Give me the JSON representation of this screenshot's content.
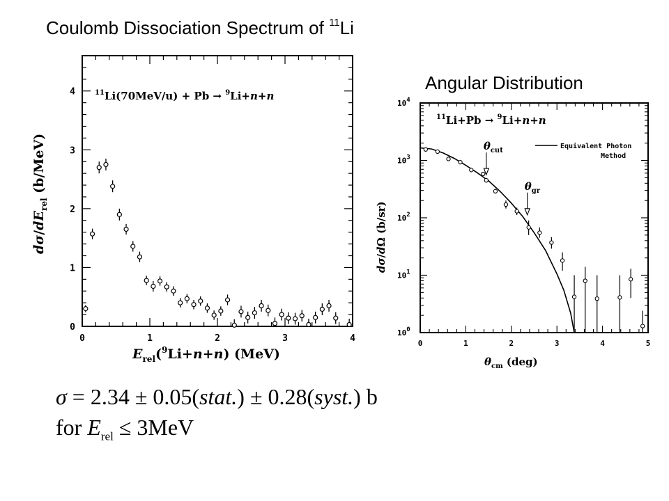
{
  "title": {
    "main": "Coulomb Dissociation Spectrum of ",
    "isotope_mass": "11",
    "isotope_symbol": "Li"
  },
  "subtitle": "Angular Distribution",
  "chart_data": [
    {
      "type": "scatter",
      "annotation": {
        "pre_sup": "11",
        "text1": "Li(70MeV/u) + Pb → ",
        "sup2": "9",
        "text2": "Li+",
        "n1": "n",
        "plus": "+",
        "n2": "n"
      },
      "ylabel": {
        "d1": "d",
        "sigma": "σ",
        "slash": "/",
        "d2": "d",
        "E": "E",
        "sub": "rel",
        "units": " (b/MeV)"
      },
      "xlabel": {
        "E": "E",
        "sub": "rel",
        "open": "(",
        "sup": "9",
        "li": "Li+",
        "n1": "n",
        "plus": "+",
        "n2": "n",
        "close": ") (MeV)"
      },
      "xlim": [
        0,
        4
      ],
      "ylim": [
        0,
        4.6
      ],
      "xticks": [
        "0",
        "1",
        "2",
        "3",
        "4"
      ],
      "yticks": [
        "0",
        "1",
        "2",
        "3",
        "4"
      ],
      "points": [
        {
          "x": 0.05,
          "y": 0.3,
          "err": 0.06
        },
        {
          "x": 0.15,
          "y": 1.57,
          "err": 0.09
        },
        {
          "x": 0.25,
          "y": 2.7,
          "err": 0.1
        },
        {
          "x": 0.35,
          "y": 2.75,
          "err": 0.1
        },
        {
          "x": 0.45,
          "y": 2.38,
          "err": 0.1
        },
        {
          "x": 0.55,
          "y": 1.9,
          "err": 0.1
        },
        {
          "x": 0.65,
          "y": 1.65,
          "err": 0.09
        },
        {
          "x": 0.75,
          "y": 1.36,
          "err": 0.09
        },
        {
          "x": 0.85,
          "y": 1.18,
          "err": 0.09
        },
        {
          "x": 0.95,
          "y": 0.78,
          "err": 0.08
        },
        {
          "x": 1.05,
          "y": 0.68,
          "err": 0.09
        },
        {
          "x": 1.15,
          "y": 0.77,
          "err": 0.08
        },
        {
          "x": 1.25,
          "y": 0.67,
          "err": 0.08
        },
        {
          "x": 1.35,
          "y": 0.6,
          "err": 0.08
        },
        {
          "x": 1.45,
          "y": 0.4,
          "err": 0.08
        },
        {
          "x": 1.55,
          "y": 0.47,
          "err": 0.08
        },
        {
          "x": 1.65,
          "y": 0.37,
          "err": 0.08
        },
        {
          "x": 1.75,
          "y": 0.43,
          "err": 0.08
        },
        {
          "x": 1.85,
          "y": 0.31,
          "err": 0.08
        },
        {
          "x": 1.95,
          "y": 0.19,
          "err": 0.08
        },
        {
          "x": 2.05,
          "y": 0.26,
          "err": 0.08
        },
        {
          "x": 2.15,
          "y": 0.45,
          "err": 0.09
        },
        {
          "x": 2.25,
          "y": 0.02,
          "err": 0.1
        },
        {
          "x": 2.35,
          "y": 0.25,
          "err": 0.1
        },
        {
          "x": 2.45,
          "y": 0.15,
          "err": 0.1
        },
        {
          "x": 2.55,
          "y": 0.23,
          "err": 0.1
        },
        {
          "x": 2.65,
          "y": 0.35,
          "err": 0.1
        },
        {
          "x": 2.75,
          "y": 0.27,
          "err": 0.1
        },
        {
          "x": 2.85,
          "y": 0.05,
          "err": 0.1
        },
        {
          "x": 2.95,
          "y": 0.2,
          "err": 0.1
        },
        {
          "x": 3.05,
          "y": 0.14,
          "err": 0.1
        },
        {
          "x": 3.15,
          "y": 0.13,
          "err": 0.1
        },
        {
          "x": 3.25,
          "y": 0.18,
          "err": 0.1
        },
        {
          "x": 3.35,
          "y": 0.03,
          "err": 0.1
        },
        {
          "x": 3.45,
          "y": 0.15,
          "err": 0.1
        },
        {
          "x": 3.55,
          "y": 0.29,
          "err": 0.1
        },
        {
          "x": 3.65,
          "y": 0.35,
          "err": 0.1
        },
        {
          "x": 3.75,
          "y": 0.14,
          "err": 0.1
        },
        {
          "x": 3.95,
          "y": 0.03,
          "err": 0.1
        }
      ]
    },
    {
      "type": "scatter",
      "log_y": true,
      "annotation": {
        "pre_sup": "11",
        "text1": "Li+Pb → ",
        "sup2": "9",
        "text2": "Li+",
        "n1": "n",
        "plus": "+",
        "n2": "n"
      },
      "ylabel": {
        "d1": "d",
        "sigma": "σ",
        "slash": "/",
        "d2": "d",
        "omega": "Ω",
        "units": " (b/sr)"
      },
      "xlabel": {
        "theta": "θ",
        "sub": "cm",
        "units": " (deg)"
      },
      "xlim": [
        0,
        5
      ],
      "ylim": [
        1,
        10000
      ],
      "xticks": [
        "0",
        "1",
        "2",
        "3",
        "4",
        "5"
      ],
      "yticks": [
        {
          "base": "10",
          "exp": "0"
        },
        {
          "base": "10",
          "exp": "1"
        },
        {
          "base": "10",
          "exp": "2"
        },
        {
          "base": "10",
          "exp": "3"
        },
        {
          "base": "10",
          "exp": "4"
        }
      ],
      "legend": {
        "line1": "Equivalent Photon",
        "line2": "Method",
        "placement": "top-right"
      },
      "markers": [
        {
          "theta": "θ",
          "sub": "cut",
          "x": 1.45,
          "y": 450
        },
        {
          "theta": "θ",
          "sub": "gr",
          "x": 2.35,
          "y": 90
        }
      ],
      "points": [
        {
          "x": 0.12,
          "y": 1550,
          "lo": 1450,
          "hi": 1650
        },
        {
          "x": 0.38,
          "y": 1420,
          "lo": 1330,
          "hi": 1520
        },
        {
          "x": 0.62,
          "y": 1060,
          "lo": 990,
          "hi": 1140
        },
        {
          "x": 0.88,
          "y": 930,
          "lo": 870,
          "hi": 1000
        },
        {
          "x": 1.12,
          "y": 680,
          "lo": 630,
          "hi": 730
        },
        {
          "x": 1.38,
          "y": 580,
          "lo": 535,
          "hi": 630
        },
        {
          "x": 1.45,
          "y": 450,
          "lo": 410,
          "hi": 495
        },
        {
          "x": 1.65,
          "y": 290,
          "lo": 265,
          "hi": 320
        },
        {
          "x": 1.88,
          "y": 170,
          "lo": 145,
          "hi": 200
        },
        {
          "x": 2.12,
          "y": 130,
          "lo": 112,
          "hi": 150
        },
        {
          "x": 2.38,
          "y": 68,
          "lo": 50,
          "hi": 90
        },
        {
          "x": 2.62,
          "y": 55,
          "lo": 45,
          "hi": 68
        },
        {
          "x": 2.88,
          "y": 37,
          "lo": 29,
          "hi": 46
        },
        {
          "x": 3.12,
          "y": 18,
          "lo": 12,
          "hi": 25
        },
        {
          "x": 3.38,
          "y": 4.2,
          "lo": 1,
          "hi": 10
        },
        {
          "x": 3.62,
          "y": 8,
          "lo": 1,
          "hi": 14
        },
        {
          "x": 3.88,
          "y": 3.9,
          "lo": 1,
          "hi": 10
        },
        {
          "x": 4.38,
          "y": 4.1,
          "lo": 1,
          "hi": 10
        },
        {
          "x": 4.62,
          "y": 8.5,
          "lo": 4,
          "hi": 13
        },
        {
          "x": 4.88,
          "y": 1.3,
          "lo": 1,
          "hi": 2.4
        }
      ],
      "curve": [
        {
          "x": 0.0,
          "y": 1650
        },
        {
          "x": 0.25,
          "y": 1580
        },
        {
          "x": 0.5,
          "y": 1350
        },
        {
          "x": 0.75,
          "y": 1080
        },
        {
          "x": 1.0,
          "y": 820
        },
        {
          "x": 1.25,
          "y": 610
        },
        {
          "x": 1.5,
          "y": 440
        },
        {
          "x": 1.75,
          "y": 290
        },
        {
          "x": 2.0,
          "y": 180
        },
        {
          "x": 2.25,
          "y": 105
        },
        {
          "x": 2.5,
          "y": 55
        },
        {
          "x": 2.75,
          "y": 27
        },
        {
          "x": 3.0,
          "y": 10.5
        },
        {
          "x": 3.15,
          "y": 5.5
        },
        {
          "x": 3.3,
          "y": 2.2
        },
        {
          "x": 3.38,
          "y": 1.0
        }
      ]
    }
  ],
  "formula": {
    "line1": {
      "sigma": "σ",
      "eq": " = 2.34 ± 0.05(",
      "stat": "stat.",
      "mid": ") ± 0.28(",
      "syst": "syst.",
      "end": ") b"
    },
    "line2": {
      "for": "for ",
      "E": "E",
      "sub": "rel",
      "rest": " ≤ 3MeV"
    }
  }
}
